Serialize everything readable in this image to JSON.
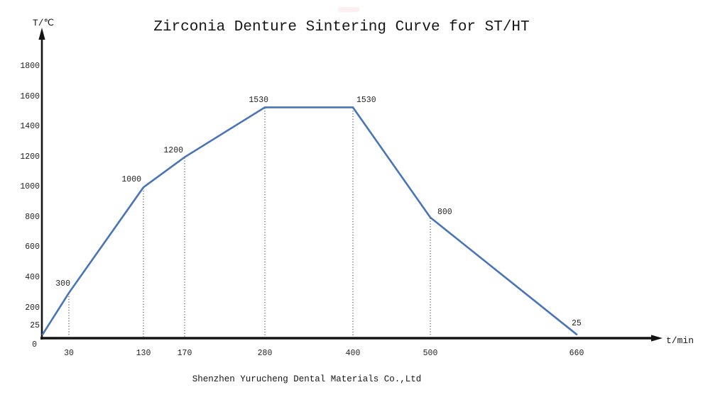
{
  "page": {
    "footer": "Shenzhen Yurucheng Dental Materials Co.,Ltd"
  },
  "chart_data": {
    "type": "line",
    "title": "Zirconia Denture Sintering Curve for ST/HT",
    "xlabel": "t/min",
    "ylabel": "T/℃",
    "xlim": [
      0,
      660
    ],
    "ylim": [
      0,
      1800
    ],
    "grid": false,
    "legend": "none",
    "line_color": "#4a74b8",
    "dotted_line_color": "#444444",
    "axis_color": "#141414",
    "x": [
      0,
      30,
      130,
      170,
      280,
      400,
      500,
      660
    ],
    "y": [
      25,
      300,
      1000,
      1200,
      1530,
      1530,
      800,
      25
    ],
    "points": [
      {
        "t": 0,
        "T": 25,
        "label": "",
        "drop": false
      },
      {
        "t": 30,
        "T": 300,
        "label": "300",
        "drop": true
      },
      {
        "t": 130,
        "T": 1000,
        "label": "1000",
        "drop": true
      },
      {
        "t": 170,
        "T": 1200,
        "label": "1200",
        "drop": true
      },
      {
        "t": 280,
        "T": 1530,
        "label": "1530",
        "drop": true
      },
      {
        "t": 400,
        "T": 1530,
        "label": "1530",
        "drop": true
      },
      {
        "t": 500,
        "T": 800,
        "label": "800",
        "drop": true
      },
      {
        "t": 660,
        "T": 25,
        "label": "25",
        "drop": false
      }
    ],
    "x_ticks": [
      {
        "t": 30,
        "label": "30"
      },
      {
        "t": 130,
        "label": "130"
      },
      {
        "t": 170,
        "label": "170"
      },
      {
        "t": 280,
        "label": "280"
      },
      {
        "t": 400,
        "label": "400"
      },
      {
        "t": 500,
        "label": "500"
      },
      {
        "t": 660,
        "label": "660"
      }
    ],
    "y_ticks": [
      {
        "v": 1800,
        "label": "1800"
      },
      {
        "v": 1600,
        "label": "1600"
      },
      {
        "v": 1400,
        "label": "1400"
      },
      {
        "v": 1200,
        "label": "1200"
      },
      {
        "v": 1000,
        "label": "1000"
      },
      {
        "v": 800,
        "label": "800"
      },
      {
        "v": 600,
        "label": "600"
      },
      {
        "v": 400,
        "label": "400"
      },
      {
        "v": 200,
        "label": "200"
      },
      {
        "v": 25,
        "label": "25"
      },
      {
        "v": 0,
        "label": "0"
      }
    ]
  }
}
